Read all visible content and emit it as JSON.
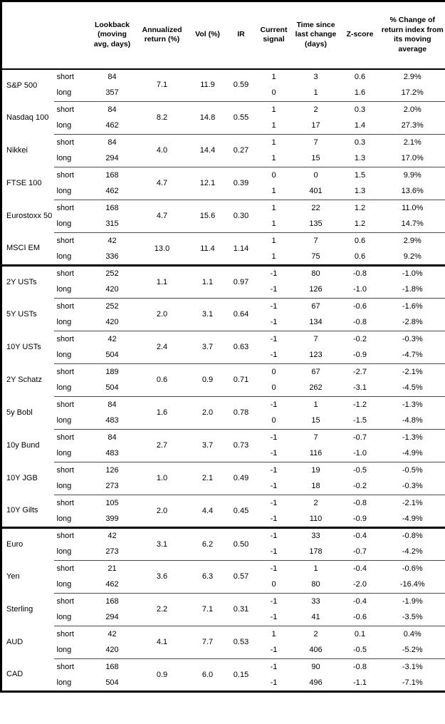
{
  "colors": {
    "background": "#ffffff",
    "text": "#000000",
    "outer_border": "#000000",
    "group_line": "#4a4a4a",
    "section_line": "#000000"
  },
  "table": {
    "headers": {
      "asset": "",
      "leg": "",
      "lookback": "Lookback (moving avg, days)",
      "annualized_return": "Annualized return (%)",
      "vol": "Vol (%)",
      "ir": "IR",
      "current_signal": "Current signal",
      "time_since": "Time since last change (days)",
      "z_score": "Z-score",
      "pct_change": "% Change of return index from its moving average"
    },
    "leg_labels": {
      "short": "short",
      "long": "long"
    },
    "groups": [
      {
        "name": "S&P 500",
        "annualized_return": "7.1",
        "vol": "11.9",
        "ir": "0.59",
        "section_end": false,
        "short": {
          "lookback": "84",
          "signal": "1",
          "days": "3",
          "z": "0.6",
          "change": "2.9%"
        },
        "long": {
          "lookback": "357",
          "signal": "0",
          "days": "1",
          "z": "1.6",
          "change": "17.2%"
        }
      },
      {
        "name": "Nasdaq 100",
        "annualized_return": "8.2",
        "vol": "14.8",
        "ir": "0.55",
        "section_end": false,
        "short": {
          "lookback": "84",
          "signal": "1",
          "days": "2",
          "z": "0.3",
          "change": "2.0%"
        },
        "long": {
          "lookback": "462",
          "signal": "1",
          "days": "17",
          "z": "1.4",
          "change": "27.3%"
        }
      },
      {
        "name": "Nikkei",
        "annualized_return": "4.0",
        "vol": "14.4",
        "ir": "0.27",
        "section_end": false,
        "short": {
          "lookback": "84",
          "signal": "1",
          "days": "7",
          "z": "0.3",
          "change": "2.1%"
        },
        "long": {
          "lookback": "294",
          "signal": "1",
          "days": "15",
          "z": "1.3",
          "change": "17.0%"
        }
      },
      {
        "name": "FTSE 100",
        "annualized_return": "4.7",
        "vol": "12.1",
        "ir": "0.39",
        "section_end": false,
        "short": {
          "lookback": "168",
          "signal": "0",
          "days": "0",
          "z": "1.5",
          "change": "9.9%"
        },
        "long": {
          "lookback": "462",
          "signal": "1",
          "days": "401",
          "z": "1.3",
          "change": "13.6%"
        }
      },
      {
        "name": "Eurostoxx 50",
        "annualized_return": "4.7",
        "vol": "15.6",
        "ir": "0.30",
        "section_end": false,
        "short": {
          "lookback": "168",
          "signal": "1",
          "days": "22",
          "z": "1.2",
          "change": "11.0%"
        },
        "long": {
          "lookback": "315",
          "signal": "1",
          "days": "135",
          "z": "1.2",
          "change": "14.7%"
        }
      },
      {
        "name": "MSCI EM",
        "annualized_return": "13.0",
        "vol": "11.4",
        "ir": "1.14",
        "section_end": true,
        "short": {
          "lookback": "42",
          "signal": "1",
          "days": "7",
          "z": "0.6",
          "change": "2.9%"
        },
        "long": {
          "lookback": "336",
          "signal": "1",
          "days": "75",
          "z": "0.6",
          "change": "9.2%"
        }
      },
      {
        "name": "2Y USTs",
        "annualized_return": "1.1",
        "vol": "1.1",
        "ir": "0.97",
        "section_end": false,
        "short": {
          "lookback": "252",
          "signal": "-1",
          "days": "80",
          "z": "-0.8",
          "change": "-1.0%"
        },
        "long": {
          "lookback": "420",
          "signal": "-1",
          "days": "126",
          "z": "-1.0",
          "change": "-1.8%"
        }
      },
      {
        "name": "5Y USTs",
        "annualized_return": "2.0",
        "vol": "3.1",
        "ir": "0.64",
        "section_end": false,
        "short": {
          "lookback": "252",
          "signal": "-1",
          "days": "67",
          "z": "-0.6",
          "change": "-1.6%"
        },
        "long": {
          "lookback": "420",
          "signal": "-1",
          "days": "134",
          "z": "-0.8",
          "change": "-2.8%"
        }
      },
      {
        "name": "10Y USTs",
        "annualized_return": "2.4",
        "vol": "3.7",
        "ir": "0.63",
        "section_end": false,
        "short": {
          "lookback": "42",
          "signal": "-1",
          "days": "7",
          "z": "-0.2",
          "change": "-0.3%"
        },
        "long": {
          "lookback": "504",
          "signal": "-1",
          "days": "123",
          "z": "-0.9",
          "change": "-4.7%"
        }
      },
      {
        "name": "2Y Schatz",
        "annualized_return": "0.6",
        "vol": "0.9",
        "ir": "0.71",
        "section_end": false,
        "short": {
          "lookback": "189",
          "signal": "0",
          "days": "67",
          "z": "-2.7",
          "change": "-2.1%"
        },
        "long": {
          "lookback": "504",
          "signal": "0",
          "days": "262",
          "z": "-3.1",
          "change": "-4.5%"
        }
      },
      {
        "name": "5y Bobl",
        "annualized_return": "1.6",
        "vol": "2.0",
        "ir": "0.78",
        "section_end": false,
        "short": {
          "lookback": "84",
          "signal": "-1",
          "days": "1",
          "z": "-1.2",
          "change": "-1.3%"
        },
        "long": {
          "lookback": "483",
          "signal": "0",
          "days": "15",
          "z": "-1.5",
          "change": "-4.8%"
        }
      },
      {
        "name": "10y Bund",
        "annualized_return": "2.7",
        "vol": "3.7",
        "ir": "0.73",
        "section_end": false,
        "short": {
          "lookback": "84",
          "signal": "-1",
          "days": "7",
          "z": "-0.7",
          "change": "-1.3%"
        },
        "long": {
          "lookback": "483",
          "signal": "-1",
          "days": "116",
          "z": "-1.0",
          "change": "-4.9%"
        }
      },
      {
        "name": "10Y JGB",
        "annualized_return": "1.0",
        "vol": "2.1",
        "ir": "0.49",
        "section_end": false,
        "short": {
          "lookback": "126",
          "signal": "-1",
          "days": "19",
          "z": "-0.5",
          "change": "-0.5%"
        },
        "long": {
          "lookback": "273",
          "signal": "-1",
          "days": "18",
          "z": "-0.2",
          "change": "-0.3%"
        }
      },
      {
        "name": "10Y Gilts",
        "annualized_return": "2.0",
        "vol": "4.4",
        "ir": "0.45",
        "section_end": true,
        "short": {
          "lookback": "105",
          "signal": "-1",
          "days": "2",
          "z": "-0.8",
          "change": "-2.1%"
        },
        "long": {
          "lookback": "399",
          "signal": "-1",
          "days": "110",
          "z": "-0.9",
          "change": "-4.9%"
        }
      },
      {
        "name": "Euro",
        "annualized_return": "3.1",
        "vol": "6.2",
        "ir": "0.50",
        "section_end": false,
        "short": {
          "lookback": "42",
          "signal": "-1",
          "days": "33",
          "z": "-0.4",
          "change": "-0.8%"
        },
        "long": {
          "lookback": "273",
          "signal": "-1",
          "days": "178",
          "z": "-0.7",
          "change": "-4.2%"
        }
      },
      {
        "name": "Yen",
        "annualized_return": "3.6",
        "vol": "6.3",
        "ir": "0.57",
        "section_end": false,
        "short": {
          "lookback": "21",
          "signal": "-1",
          "days": "1",
          "z": "-0.4",
          "change": "-0.6%"
        },
        "long": {
          "lookback": "462",
          "signal": "0",
          "days": "80",
          "z": "-2.0",
          "change": "-16.4%"
        }
      },
      {
        "name": "Sterling",
        "annualized_return": "2.2",
        "vol": "7.1",
        "ir": "0.31",
        "section_end": false,
        "short": {
          "lookback": "168",
          "signal": "-1",
          "days": "33",
          "z": "-0.4",
          "change": "-1.9%"
        },
        "long": {
          "lookback": "294",
          "signal": "-1",
          "days": "41",
          "z": "-0.6",
          "change": "-3.5%"
        }
      },
      {
        "name": "AUD",
        "annualized_return": "4.1",
        "vol": "7.7",
        "ir": "0.53",
        "section_end": false,
        "short": {
          "lookback": "42",
          "signal": "1",
          "days": "2",
          "z": "0.1",
          "change": "0.4%"
        },
        "long": {
          "lookback": "420",
          "signal": "-1",
          "days": "406",
          "z": "-0.5",
          "change": "-5.2%"
        }
      },
      {
        "name": "CAD",
        "annualized_return": "0.9",
        "vol": "6.0",
        "ir": "0.15",
        "section_end": false,
        "short": {
          "lookback": "168",
          "signal": "-1",
          "days": "90",
          "z": "-0.8",
          "change": "-3.1%"
        },
        "long": {
          "lookback": "504",
          "signal": "-1",
          "days": "496",
          "z": "-1.1",
          "change": "-7.1%"
        }
      }
    ]
  }
}
